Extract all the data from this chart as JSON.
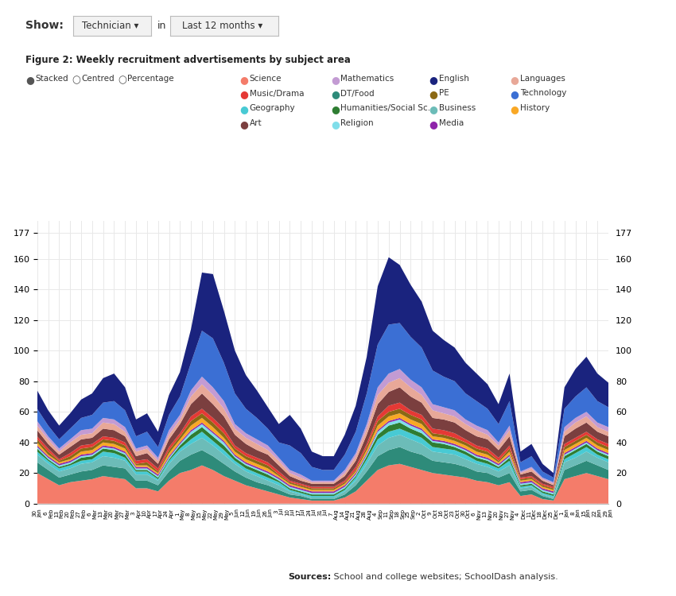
{
  "title": "Figure 2: Weekly recruitment advertisements by subject area",
  "subtitle_bold": "Sources:",
  "subtitle_rest": " School and college websites; SchoolDash analysis.",
  "background_color": "#ffffff",
  "grid_color": "#e8e8e8",
  "ymax": 185,
  "yticks": [
    0,
    20,
    40,
    60,
    80,
    100,
    120,
    140,
    160,
    177
  ],
  "x_labels": [
    "30\nJan",
    "6\nFeb",
    "13\nFeb",
    "20\nFeb",
    "27\nFeb",
    "6\nMar",
    "13\nMar",
    "20\nMar",
    "27\nMar",
    "3\nApr",
    "10\nApr",
    "17\nApr",
    "24\nApr",
    "1\nMay",
    "8\nMay",
    "15\nMay",
    "22\nMay",
    "29\nMay",
    "5\nJun",
    "12\nJun",
    "19\nJun",
    "26\nJun",
    "3\nJul",
    "10\nJul",
    "17\nJul",
    "24\nJul",
    "31\nJul",
    "7\nAug",
    "14\nAug",
    "21\nAug",
    "28\nAug",
    "4\nSep",
    "11\nSep",
    "18\nSep",
    "25\nSep",
    "2\nOct",
    "9\nOct",
    "16\nOct",
    "23\nOct",
    "30\nOct",
    "6\nNov",
    "13\nNov",
    "20\nNov",
    "27\nNov",
    "4\nDec",
    "11\nDec",
    "18\nDec",
    "25\nDec",
    "1\nJan",
    "8\nJan",
    "15\nJan",
    "22\nJan",
    "29\nJan"
  ],
  "legend_subjects": [
    {
      "name": "Science",
      "color": "#F47C6A"
    },
    {
      "name": "Mathematics",
      "color": "#C39BD3"
    },
    {
      "name": "English",
      "color": "#1A237E"
    },
    {
      "name": "Languages",
      "color": "#E8A898"
    },
    {
      "name": "Music/Drama",
      "color": "#E53935"
    },
    {
      "name": "DT/Food",
      "color": "#2E8B7A"
    },
    {
      "name": "PE",
      "color": "#8B6914"
    },
    {
      "name": "Technology",
      "color": "#3B6FD4"
    },
    {
      "name": "Geography",
      "color": "#48CAD4"
    },
    {
      "name": "Humanities/Social Sc...",
      "color": "#2E7D32"
    },
    {
      "name": "Business",
      "color": "#6CBCB8"
    },
    {
      "name": "History",
      "color": "#F9A825"
    },
    {
      "name": "Art",
      "color": "#7B3F3F"
    },
    {
      "name": "Religion",
      "color": "#80DEEA"
    },
    {
      "name": "Media",
      "color": "#8E24AA"
    }
  ],
  "series_order": [
    "Science",
    "DT/Food",
    "Business",
    "Geography",
    "Humanities",
    "Religion",
    "Media",
    "History",
    "PE",
    "Music",
    "Art",
    "Languages",
    "Mathematics",
    "Technology",
    "English"
  ],
  "series_colors": {
    "Science": "#F47C6A",
    "DT/Food": "#2E8B7A",
    "Business": "#6CBCB8",
    "Geography": "#48CAD4",
    "Humanities": "#2E7D32",
    "Religion": "#80DEEA",
    "Media": "#8E24AA",
    "History": "#F9A825",
    "PE": "#8B6914",
    "Music": "#E53935",
    "Art": "#7B3F3F",
    "Languages": "#E8A898",
    "Mathematics": "#C39BD3",
    "Technology": "#3B6FD4",
    "English": "#1A237E"
  },
  "series": {
    "Science": [
      20,
      16,
      12,
      14,
      15,
      16,
      18,
      17,
      16,
      10,
      10,
      8,
      15,
      20,
      22,
      25,
      22,
      18,
      15,
      12,
      10,
      8,
      6,
      4,
      3,
      2,
      2,
      2,
      4,
      8,
      15,
      22,
      25,
      26,
      24,
      22,
      20,
      19,
      18,
      17,
      15,
      14,
      12,
      14,
      5,
      6,
      3,
      2,
      16,
      18,
      20,
      18,
      16
    ],
    "DT/Food": [
      7,
      6,
      5,
      5,
      6,
      6,
      7,
      7,
      7,
      5,
      5,
      4,
      6,
      8,
      10,
      10,
      9,
      8,
      6,
      5,
      4,
      4,
      3,
      2,
      2,
      1,
      1,
      1,
      2,
      4,
      6,
      9,
      10,
      11,
      10,
      10,
      8,
      8,
      8,
      7,
      6,
      6,
      5,
      6,
      3,
      3,
      2,
      1,
      6,
      7,
      8,
      7,
      6
    ],
    "Business": [
      5,
      4,
      4,
      4,
      5,
      5,
      6,
      6,
      5,
      4,
      4,
      3,
      5,
      6,
      7,
      8,
      7,
      6,
      5,
      4,
      4,
      3,
      3,
      2,
      1,
      1,
      1,
      1,
      2,
      3,
      5,
      7,
      8,
      8,
      8,
      7,
      6,
      6,
      6,
      5,
      5,
      4,
      4,
      5,
      2,
      2,
      1,
      1,
      5,
      5,
      6,
      5,
      5
    ],
    "Geography": [
      2,
      2,
      2,
      2,
      2,
      2,
      3,
      3,
      2,
      2,
      2,
      1,
      2,
      2,
      3,
      4,
      3,
      3,
      2,
      2,
      2,
      2,
      2,
      1,
      1,
      1,
      1,
      1,
      1,
      2,
      3,
      4,
      4,
      4,
      4,
      4,
      3,
      3,
      3,
      3,
      2,
      2,
      2,
      3,
      1,
      1,
      1,
      1,
      2,
      3,
      3,
      2,
      2
    ],
    "Humanities": [
      2,
      1,
      1,
      1,
      2,
      2,
      2,
      2,
      2,
      1,
      1,
      1,
      1,
      2,
      3,
      3,
      3,
      3,
      2,
      2,
      2,
      2,
      1,
      1,
      1,
      1,
      1,
      1,
      1,
      1,
      2,
      3,
      4,
      4,
      3,
      3,
      3,
      3,
      2,
      2,
      2,
      2,
      1,
      2,
      1,
      1,
      1,
      1,
      2,
      2,
      2,
      2,
      2
    ],
    "Religion": [
      1,
      1,
      1,
      1,
      1,
      1,
      1,
      1,
      1,
      1,
      1,
      1,
      1,
      1,
      2,
      2,
      2,
      2,
      1,
      1,
      1,
      1,
      1,
      1,
      1,
      1,
      1,
      1,
      1,
      1,
      1,
      2,
      2,
      2,
      2,
      2,
      1,
      1,
      1,
      1,
      1,
      1,
      1,
      1,
      1,
      1,
      1,
      1,
      1,
      1,
      1,
      1,
      1
    ],
    "Media": [
      1,
      1,
      1,
      1,
      1,
      1,
      1,
      1,
      1,
      1,
      1,
      1,
      1,
      1,
      1,
      1,
      1,
      1,
      1,
      1,
      1,
      1,
      1,
      1,
      1,
      1,
      1,
      1,
      1,
      1,
      1,
      1,
      1,
      1,
      1,
      1,
      1,
      1,
      1,
      1,
      1,
      1,
      1,
      1,
      1,
      1,
      1,
      1,
      1,
      1,
      1,
      1,
      1
    ],
    "History": [
      2,
      1,
      1,
      1,
      2,
      2,
      2,
      2,
      2,
      1,
      1,
      1,
      2,
      2,
      3,
      3,
      3,
      2,
      2,
      2,
      2,
      2,
      1,
      1,
      1,
      1,
      1,
      1,
      1,
      1,
      2,
      3,
      3,
      3,
      3,
      3,
      2,
      2,
      2,
      2,
      2,
      2,
      1,
      2,
      1,
      1,
      1,
      1,
      2,
      2,
      2,
      2,
      2
    ],
    "PE": [
      2,
      2,
      1,
      2,
      2,
      2,
      2,
      2,
      2,
      1,
      2,
      1,
      2,
      2,
      3,
      3,
      3,
      3,
      2,
      2,
      2,
      2,
      1,
      1,
      1,
      1,
      1,
      1,
      1,
      1,
      2,
      3,
      3,
      3,
      3,
      3,
      2,
      2,
      2,
      2,
      2,
      2,
      1,
      2,
      1,
      1,
      1,
      1,
      2,
      2,
      2,
      2,
      2
    ],
    "Music": [
      2,
      2,
      1,
      2,
      2,
      2,
      2,
      2,
      2,
      2,
      2,
      2,
      2,
      2,
      3,
      3,
      3,
      3,
      2,
      2,
      2,
      2,
      2,
      1,
      1,
      1,
      1,
      1,
      1,
      2,
      2,
      3,
      4,
      4,
      3,
      3,
      3,
      3,
      3,
      2,
      2,
      2,
      2,
      2,
      1,
      1,
      1,
      1,
      2,
      2,
      2,
      2,
      2
    ],
    "Art": [
      4,
      3,
      3,
      4,
      4,
      4,
      5,
      5,
      4,
      3,
      4,
      3,
      5,
      6,
      8,
      10,
      9,
      8,
      7,
      6,
      5,
      5,
      4,
      3,
      2,
      2,
      2,
      2,
      3,
      4,
      6,
      8,
      9,
      10,
      9,
      8,
      7,
      7,
      7,
      6,
      6,
      6,
      5,
      6,
      2,
      3,
      2,
      1,
      5,
      6,
      6,
      5,
      5
    ],
    "Languages": [
      3,
      3,
      2,
      3,
      3,
      3,
      4,
      4,
      3,
      3,
      3,
      2,
      3,
      3,
      5,
      6,
      6,
      5,
      4,
      4,
      4,
      3,
      3,
      2,
      2,
      1,
      1,
      1,
      2,
      3,
      4,
      6,
      6,
      6,
      6,
      5,
      5,
      4,
      4,
      4,
      4,
      3,
      3,
      4,
      1,
      2,
      1,
      1,
      3,
      4,
      4,
      3,
      3
    ],
    "Mathematics": [
      3,
      2,
      2,
      2,
      3,
      3,
      3,
      3,
      3,
      2,
      2,
      2,
      3,
      3,
      4,
      5,
      5,
      5,
      3,
      3,
      3,
      3,
      2,
      2,
      2,
      1,
      1,
      1,
      2,
      2,
      3,
      5,
      6,
      6,
      5,
      5,
      4,
      4,
      4,
      3,
      3,
      3,
      2,
      3,
      1,
      1,
      1,
      1,
      3,
      3,
      3,
      3,
      3
    ],
    "Technology": [
      8,
      7,
      6,
      7,
      8,
      9,
      10,
      12,
      11,
      8,
      9,
      7,
      10,
      12,
      18,
      30,
      32,
      25,
      20,
      16,
      14,
      11,
      10,
      16,
      14,
      9,
      7,
      7,
      10,
      14,
      20,
      28,
      32,
      30,
      28,
      26,
      22,
      20,
      19,
      17,
      16,
      14,
      12,
      16,
      6,
      7,
      4,
      3,
      12,
      14,
      16,
      14,
      13
    ],
    "English": [
      12,
      10,
      9,
      10,
      12,
      14,
      16,
      18,
      15,
      11,
      12,
      10,
      13,
      16,
      22,
      38,
      42,
      34,
      28,
      22,
      18,
      14,
      12,
      20,
      16,
      10,
      9,
      9,
      13,
      17,
      24,
      38,
      44,
      38,
      34,
      30,
      26,
      24,
      22,
      20,
      18,
      16,
      13,
      18,
      7,
      8,
      5,
      3,
      14,
      18,
      20,
      18,
      16
    ]
  }
}
